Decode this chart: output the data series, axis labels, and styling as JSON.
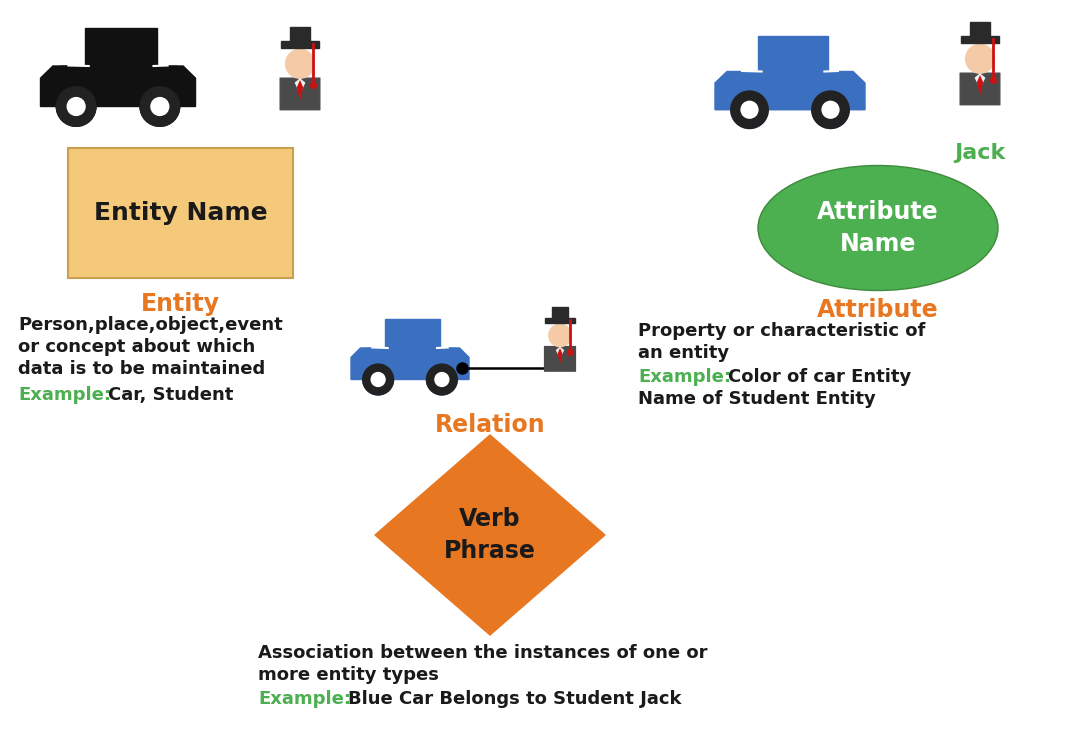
{
  "bg_color": "#ffffff",
  "orange_color": "#E87722",
  "green_color": "#4CAF50",
  "black_color": "#1a1a1a",
  "blue_car_color": "#3B6FBF",
  "entity_box_color": "#F5C97A",
  "entity_box_edge": "#C8A050",
  "attribute_ellipse_color": "#4CAF50",
  "relation_diamond_color": "#E87722",
  "entity_label": "Entity Name",
  "attribute_label": "Attribute\nName",
  "relation_label": "Verb\nPhrase",
  "entity_title": "Entity",
  "attribute_title": "Attribute",
  "relation_title": "Relation",
  "jack_label": "Jack",
  "entity_desc_line1": "Person,place,object,event",
  "entity_desc_line2": "or concept about which",
  "entity_desc_line3": "data is to be maintained",
  "entity_example_label": "Example",
  "entity_example_text": ": Car, Student",
  "attribute_desc_line1": "Property or characteristic of",
  "attribute_desc_line2": "an entity",
  "attribute_example_label": "Example",
  "attribute_example_text": ": Color of car Entity",
  "attribute_desc_line3": "Name of Student Entity",
  "relation_desc_line1": "Association between the instances of one or",
  "relation_desc_line2": "more entity types",
  "relation_example_label": "Example",
  "relation_example_text": ": Blue Car Belongs to Student Jack"
}
